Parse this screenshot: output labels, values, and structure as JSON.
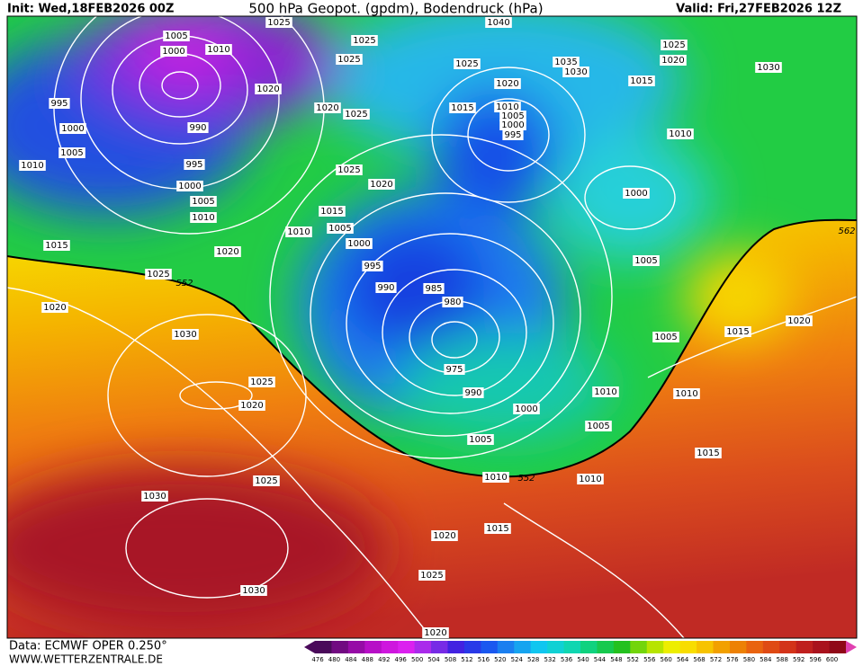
{
  "header": {
    "init": "Init: Wed,18FEB2026 00Z",
    "title": "500 hPa Geopot. (gpdm), Bodendruck (hPa)",
    "valid": "Valid: Fri,27FEB2026 12Z"
  },
  "footer": {
    "source": "Data: ECMWF OPER 0.250°",
    "website": "WWW.WETTERZENTRALE.DE"
  },
  "colorbar": {
    "labels": [
      476,
      480,
      484,
      488,
      492,
      496,
      500,
      504,
      508,
      512,
      516,
      520,
      524,
      528,
      532,
      536,
      540,
      544,
      548,
      552,
      556,
      560,
      564,
      568,
      572,
      576,
      580,
      584,
      588,
      592,
      596,
      600
    ]
  },
  "isobars": {
    "labels": [
      "1025",
      "1005",
      "1000",
      "1010",
      "1025",
      "1025",
      "1020",
      "995",
      "1000",
      "990",
      "1005",
      "995",
      "1010",
      "1000",
      "1005",
      "1010",
      "1020",
      "1025",
      "1025",
      "1020",
      "1015",
      "1010",
      "1005",
      "1000",
      "995",
      "990",
      "985",
      "980",
      "975",
      "990",
      "1000",
      "1005",
      "1010",
      "552",
      "1010",
      "1015",
      "1020",
      "1025",
      "1020",
      "1015",
      "1020",
      "1025",
      "552",
      "1020",
      "1030",
      "1025",
      "1020",
      "1025",
      "1030",
      "1030",
      "1040",
      "1025",
      "1020",
      "1015",
      "1010",
      "1005",
      "1000",
      "995",
      "1035",
      "1030",
      "1025",
      "1020",
      "1015",
      "1030",
      "1010",
      "1000",
      "1005",
      "562",
      "1020",
      "1015",
      "1005",
      "1010",
      "1010",
      "1005",
      "1015"
    ]
  }
}
